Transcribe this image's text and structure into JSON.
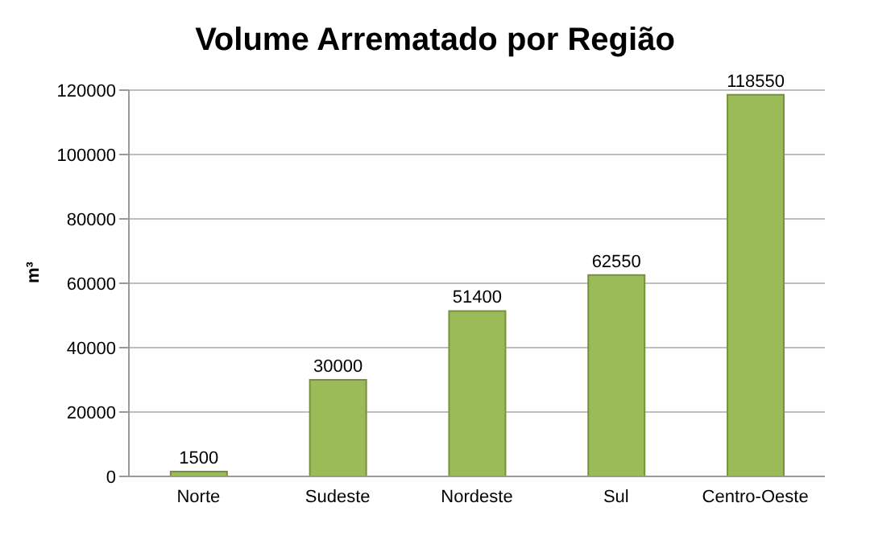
{
  "chart_data": {
    "type": "bar",
    "title": "Volume Arrematado por Região",
    "ylabel": "m³",
    "categories": [
      "Norte",
      "Sudeste",
      "Nordeste",
      "Sul",
      "Centro-Oeste"
    ],
    "values": [
      1500,
      30000,
      51400,
      62550,
      118550
    ],
    "color": "#9bbb59",
    "ylim": [
      0,
      120000
    ],
    "yticks": [
      0,
      20000,
      40000,
      60000,
      80000,
      100000,
      120000
    ],
    "grid": "y",
    "data_labels": true
  }
}
